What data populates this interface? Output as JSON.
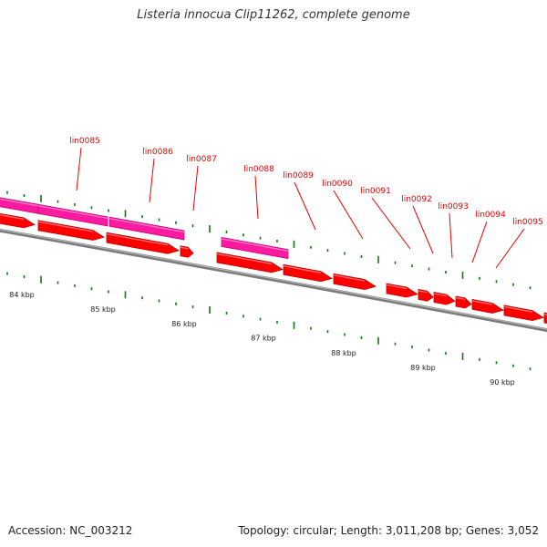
{
  "title": "Listeria innocua Clip11262, complete genome",
  "footer": {
    "accession": "Accession: NC_003212",
    "summary": "Topology: circular; Length: 3,011,208 bp; Genes: 3,052"
  },
  "colors": {
    "background": "#ffffff",
    "backbone": "#7a7a7a",
    "cds": "#ff0000",
    "cds_dark": "#c40000",
    "rna": "#ff1aa0",
    "rna_dark": "#c4007a",
    "tick": "#0a7a0a",
    "label": "#e60000"
  },
  "scale_labels": [
    "84 kbp",
    "85 kbp",
    "86 kbp",
    "87 kbp",
    "88 kbp",
    "89 kbp",
    "90 kbp"
  ],
  "gene_labels": [
    "lin0085",
    "lin0086",
    "lin0087",
    "lin0088",
    "lin0089",
    "lin0090",
    "lin0091",
    "lin0092",
    "lin0093",
    "lin0094",
    "lin0095"
  ]
}
